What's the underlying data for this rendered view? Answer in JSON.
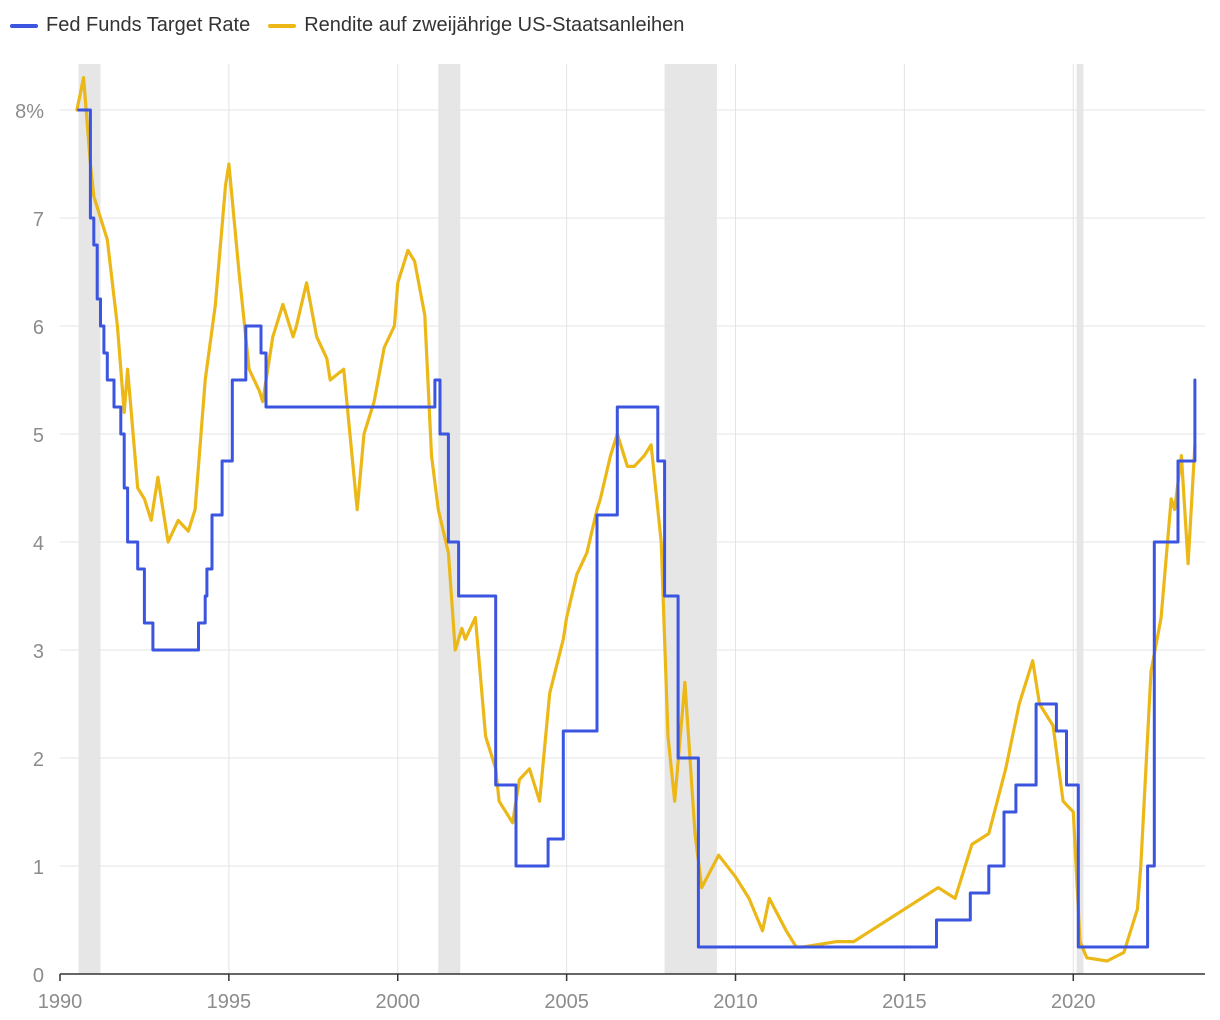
{
  "chart_data": {
    "type": "line",
    "title": "",
    "xlabel": "",
    "ylabel": "",
    "xlim": [
      1990,
      2023.9
    ],
    "ylim": [
      0,
      8.5
    ],
    "x_ticks": [
      1990,
      1995,
      2000,
      2005,
      2010,
      2015,
      2020
    ],
    "y_ticks": [
      {
        "value": 0,
        "label": "0"
      },
      {
        "value": 1,
        "label": "1"
      },
      {
        "value": 2,
        "label": "2"
      },
      {
        "value": 3,
        "label": "3"
      },
      {
        "value": 4,
        "label": "4"
      },
      {
        "value": 5,
        "label": "5"
      },
      {
        "value": 6,
        "label": "6"
      },
      {
        "value": 7,
        "label": "7"
      },
      {
        "value": 8,
        "label": "8%"
      }
    ],
    "recessions": [
      {
        "start": 1990.55,
        "end": 1991.2
      },
      {
        "start": 2001.2,
        "end": 2001.85
      },
      {
        "start": 2007.9,
        "end": 2009.45
      },
      {
        "start": 2020.1,
        "end": 2020.3
      }
    ],
    "series": [
      {
        "name": "Fed Funds Target Rate",
        "color": "#3b55e0",
        "step": true,
        "x": [
          1990.55,
          1990.9,
          1991.0,
          1991.1,
          1991.2,
          1991.3,
          1991.4,
          1991.6,
          1991.8,
          1991.9,
          1992.0,
          1992.3,
          1992.5,
          1992.75,
          1994.1,
          1994.3,
          1994.35,
          1994.5,
          1994.8,
          1995.1,
          1995.5,
          1995.95,
          1996.1,
          2001.1,
          2001.25,
          2001.5,
          2001.8,
          2002.9,
          2003.5,
          2004.45,
          2004.9,
          2005.9,
          2006.5,
          2007.7,
          2007.9,
          2008.3,
          2008.9,
          2015.95,
          2016.95,
          2017.5,
          2017.95,
          2018.3,
          2018.9,
          2019.5,
          2019.8,
          2020.15,
          2022.2,
          2022.4,
          2023.1,
          2023.6
        ],
        "y": [
          8.0,
          7.0,
          6.75,
          6.25,
          6.0,
          5.75,
          5.5,
          5.25,
          5.0,
          4.5,
          4.0,
          3.75,
          3.25,
          3.0,
          3.25,
          3.5,
          3.75,
          4.25,
          4.75,
          5.5,
          6.0,
          5.75,
          5.25,
          5.5,
          5.0,
          4.0,
          3.5,
          1.75,
          1.0,
          1.25,
          2.25,
          4.25,
          5.25,
          4.75,
          3.5,
          2.0,
          0.25,
          0.5,
          0.75,
          1.0,
          1.5,
          1.75,
          2.5,
          2.25,
          1.75,
          0.25,
          1.0,
          4.0,
          4.75,
          5.5
        ]
      },
      {
        "name": "Rendite auf zweijährige US-Staatsanleihen",
        "color": "#ebb818",
        "step": false,
        "x": [
          1990.5,
          1990.7,
          1990.9,
          1991.0,
          1991.4,
          1991.7,
          1991.9,
          1992.0,
          1992.3,
          1992.5,
          1992.7,
          1992.9,
          1993.2,
          1993.5,
          1993.8,
          1994.0,
          1994.3,
          1994.6,
          1994.9,
          1995.0,
          1995.3,
          1995.6,
          1995.9,
          1996.0,
          1996.3,
          1996.6,
          1996.9,
          1997.0,
          1997.3,
          1997.6,
          1997.9,
          1998.0,
          1998.4,
          1998.8,
          1999.0,
          1999.3,
          1999.6,
          1999.9,
          2000.0,
          2000.3,
          2000.5,
          2000.8,
          2001.0,
          2001.2,
          2001.5,
          2001.7,
          2001.9,
          2002.0,
          2002.3,
          2002.6,
          2002.9,
          2003.0,
          2003.4,
          2003.6,
          2003.9,
          2004.2,
          2004.5,
          2004.9,
          2005.0,
          2005.3,
          2005.6,
          2005.9,
          2006.0,
          2006.3,
          2006.5,
          2006.8,
          2007.0,
          2007.3,
          2007.5,
          2007.8,
          2008.0,
          2008.2,
          2008.5,
          2008.8,
          2009.0,
          2009.5,
          2010.0,
          2010.4,
          2010.8,
          2011.0,
          2011.5,
          2011.8,
          2012.0,
          2013.0,
          2013.5,
          2014.0,
          2014.5,
          2015.0,
          2015.5,
          2016.0,
          2016.5,
          2017.0,
          2017.5,
          2018.0,
          2018.4,
          2018.8,
          2019.0,
          2019.4,
          2019.7,
          2020.0,
          2020.2,
          2020.4,
          2021.0,
          2021.5,
          2021.9,
          2022.0,
          2022.3,
          2022.6,
          2022.9,
          2023.0,
          2023.2,
          2023.4,
          2023.6
        ],
        "y": [
          8.0,
          8.3,
          7.5,
          7.2,
          6.8,
          6.0,
          5.2,
          5.6,
          4.5,
          4.4,
          4.2,
          4.6,
          4.0,
          4.2,
          4.1,
          4.3,
          5.5,
          6.2,
          7.3,
          7.5,
          6.5,
          5.6,
          5.4,
          5.3,
          5.9,
          6.2,
          5.9,
          6.0,
          6.4,
          5.9,
          5.7,
          5.5,
          5.6,
          4.3,
          5.0,
          5.3,
          5.8,
          6.0,
          6.4,
          6.7,
          6.6,
          6.1,
          4.8,
          4.3,
          3.9,
          3.0,
          3.2,
          3.1,
          3.3,
          2.2,
          1.9,
          1.6,
          1.4,
          1.8,
          1.9,
          1.6,
          2.6,
          3.1,
          3.3,
          3.7,
          3.9,
          4.3,
          4.4,
          4.8,
          5.0,
          4.7,
          4.7,
          4.8,
          4.9,
          4.0,
          2.2,
          1.6,
          2.7,
          1.3,
          0.8,
          1.1,
          0.9,
          0.7,
          0.4,
          0.7,
          0.4,
          0.25,
          0.25,
          0.3,
          0.3,
          0.4,
          0.5,
          0.6,
          0.7,
          0.8,
          0.7,
          1.2,
          1.3,
          1.9,
          2.5,
          2.9,
          2.5,
          2.3,
          1.6,
          1.5,
          0.3,
          0.15,
          0.12,
          0.2,
          0.6,
          1.0,
          2.8,
          3.3,
          4.4,
          4.3,
          4.8,
          3.8,
          4.9
        ]
      }
    ],
    "legend": "top-left"
  }
}
